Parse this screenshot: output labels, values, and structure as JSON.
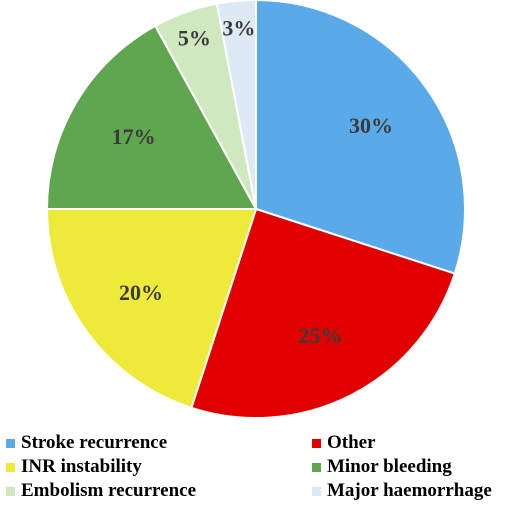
{
  "chart_data": {
    "type": "pie",
    "title": "",
    "start_angle_deg": 0,
    "direction": "clockwise",
    "slices": [
      {
        "label": "Stroke recurrence",
        "value": 30,
        "display": "30%",
        "color": "#5aaaea"
      },
      {
        "label": "Other",
        "value": 25,
        "display": "25%",
        "color": "#e00000"
      },
      {
        "label": "INR instability",
        "value": 20,
        "display": "20%",
        "color": "#eeea3a"
      },
      {
        "label": "Minor bleeding",
        "value": 17,
        "display": "17%",
        "color": "#5fa64f"
      },
      {
        "label": "Embolism recurrence",
        "value": 5,
        "display": "5%",
        "color": "#cfe8bf"
      },
      {
        "label": "Major haemorrhage",
        "value": 3,
        "display": "3%",
        "color": "#dde9f4"
      }
    ],
    "legend": {
      "placement": "bottom",
      "entries": [
        "Stroke recurrence",
        "Other",
        "INR instability",
        "Minor bleeding",
        "Embolism recurrence",
        "Major haemorrhage"
      ]
    }
  }
}
